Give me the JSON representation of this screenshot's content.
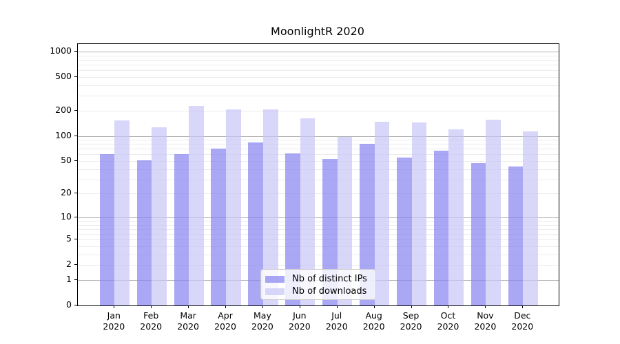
{
  "title": "MoonlightR 2020",
  "colors": {
    "background": "#ffffff",
    "axis": "#000000",
    "text": "#000000",
    "major_grid": "#b0b0b0",
    "minor_grid": "#ebebeb",
    "legend_border": "#cccccc"
  },
  "chart_data": {
    "type": "bar",
    "title": "MoonlightR 2020",
    "xlabel": "",
    "ylabel": "",
    "x_year": "2020",
    "categories": [
      "Jan",
      "Feb",
      "Mar",
      "Apr",
      "May",
      "Jun",
      "Jul",
      "Aug",
      "Sep",
      "Oct",
      "Nov",
      "Dec"
    ],
    "series": [
      {
        "name": "Nb of distinct IPs",
        "color": "#8683f0",
        "alpha": 0.7,
        "values": [
          61,
          51,
          61,
          70,
          84,
          62,
          53,
          80,
          55,
          67,
          47,
          43
        ]
      },
      {
        "name": "Nb of downloads",
        "color": "#c9c6f7",
        "alpha": 0.7,
        "values": [
          152,
          127,
          227,
          207,
          206,
          163,
          97,
          147,
          145,
          119,
          155,
          114
        ]
      }
    ],
    "yscale": "log1p",
    "ylim": [
      0,
      1230
    ],
    "yticks": [
      0,
      1,
      2,
      5,
      10,
      20,
      50,
      100,
      200,
      500,
      1000
    ],
    "major_gridlines": [
      1,
      10,
      100,
      1000
    ],
    "minor_gridlines": [
      2,
      3,
      4,
      5,
      6,
      7,
      8,
      9,
      20,
      30,
      40,
      50,
      60,
      70,
      80,
      90,
      200,
      300,
      400,
      500,
      600,
      700,
      800,
      900
    ],
    "grid": true,
    "legend_position": "lower center"
  }
}
